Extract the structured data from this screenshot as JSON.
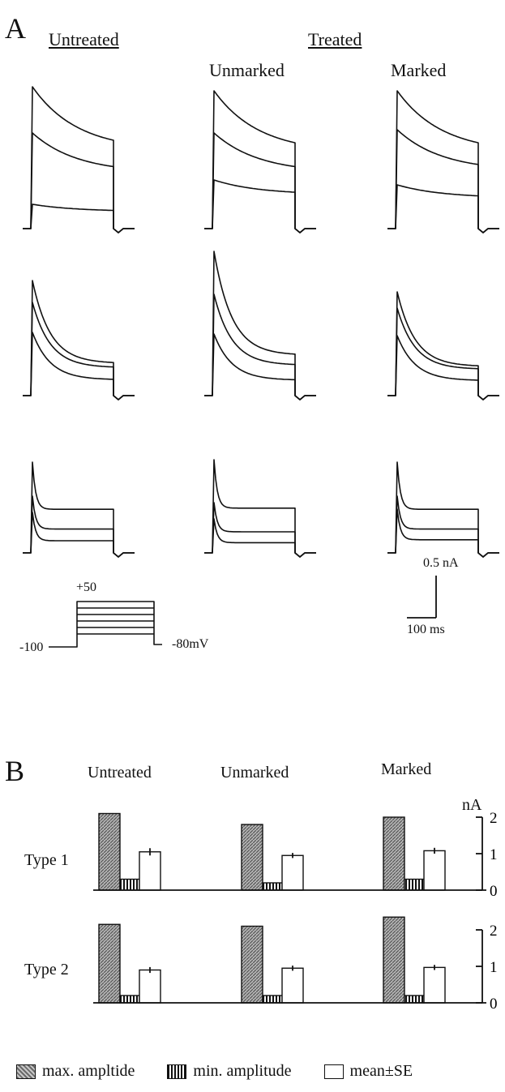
{
  "panel_a": {
    "letter": "A",
    "group_untreated": "Untreated",
    "group_treated": "Treated",
    "sub_unmarked": "Unmarked",
    "sub_marked": "Marked",
    "protocol": {
      "top_voltage": "+50",
      "holding": "-100",
      "return": "-80mV"
    },
    "scale_bar": {
      "current": "0.5 nA",
      "time": "100 ms"
    }
  },
  "panel_b": {
    "letter": "B",
    "columns": [
      "Untreated",
      "Unmarked",
      "Marked"
    ],
    "unit": "nA",
    "rows": [
      "Type 1",
      "Type 2"
    ],
    "legend": {
      "max_label": "max. ampltide",
      "min_label": "min. amplitude",
      "mean_label": "mean±SE"
    }
  },
  "chart_data": {
    "type": "bar",
    "ylabel": "nA",
    "ylim": [
      0,
      2
    ],
    "yticks": [
      "0",
      "1",
      "2"
    ],
    "categories": [
      "Untreated",
      "Unmarked",
      "Marked"
    ],
    "groups": [
      {
        "name": "Type 1",
        "series": [
          {
            "name": "max. ampltide",
            "values": [
              2.1,
              1.8,
              2.0
            ]
          },
          {
            "name": "min. amplitude",
            "values": [
              0.3,
              0.2,
              0.3
            ]
          },
          {
            "name": "mean±SE",
            "values": [
              1.05,
              0.95,
              1.08
            ],
            "se": [
              0.1,
              0.07,
              0.08
            ]
          }
        ]
      },
      {
        "name": "Type 2",
        "series": [
          {
            "name": "max. ampltide",
            "values": [
              2.15,
              2.1,
              2.35
            ]
          },
          {
            "name": "min. amplitude",
            "values": [
              0.2,
              0.2,
              0.2
            ]
          },
          {
            "name": "mean±SE",
            "values": [
              0.9,
              0.95,
              0.97
            ],
            "se": [
              0.08,
              0.07,
              0.07
            ]
          }
        ]
      }
    ],
    "colors": {
      "max": "#9a9a9a",
      "min": "#111111",
      "mean": "#ffffff"
    }
  }
}
